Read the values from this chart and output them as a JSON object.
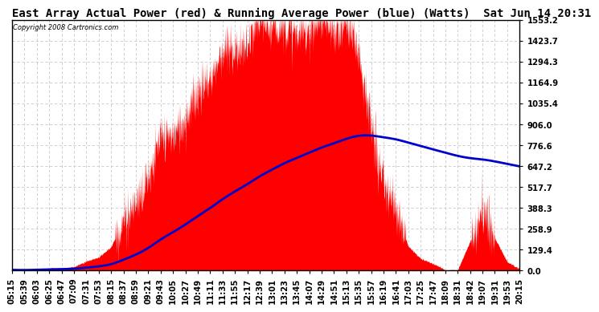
{
  "title": "East Array Actual Power (red) & Running Average Power (blue) (Watts)  Sat Jun 14 20:31",
  "copyright": "Copyright 2008 Cartronics.com",
  "yticks": [
    0.0,
    129.4,
    258.9,
    388.3,
    517.7,
    647.2,
    776.6,
    906.0,
    1035.4,
    1164.9,
    1294.3,
    1423.7,
    1553.2
  ],
  "ymax": 1553.2,
  "xtick_labels": [
    "05:15",
    "05:39",
    "06:03",
    "06:25",
    "06:47",
    "07:09",
    "07:31",
    "07:53",
    "08:15",
    "08:37",
    "08:59",
    "09:21",
    "09:43",
    "10:05",
    "10:27",
    "10:49",
    "11:11",
    "11:33",
    "11:55",
    "12:17",
    "12:39",
    "13:01",
    "13:23",
    "13:45",
    "14:07",
    "14:29",
    "14:51",
    "15:13",
    "15:35",
    "15:57",
    "16:19",
    "16:41",
    "17:03",
    "17:25",
    "17:47",
    "18:09",
    "18:31",
    "18:42",
    "19:07",
    "19:31",
    "19:53",
    "20:15"
  ],
  "bg_color": "#ffffff",
  "plot_bg_color": "#ffffff",
  "grid_color": "#c8c8c8",
  "actual_color": "#ff0000",
  "avg_color": "#0000cc",
  "title_fontsize": 10,
  "tick_fontsize": 7.2,
  "n_interp": 2000
}
